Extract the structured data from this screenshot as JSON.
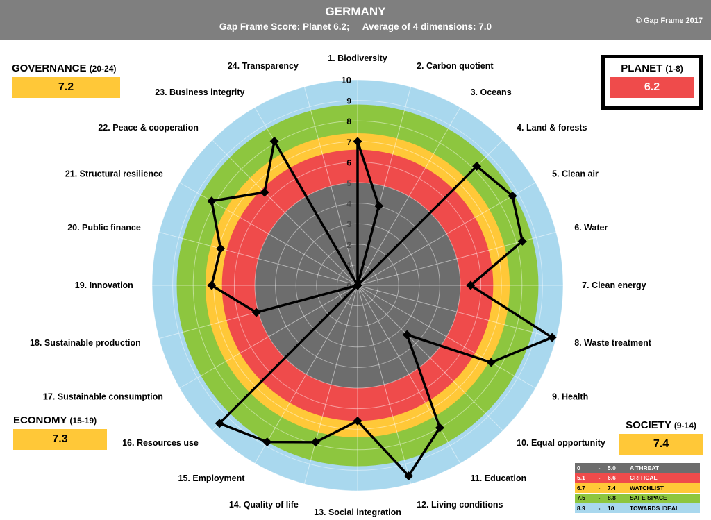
{
  "header": {
    "title": "GERMANY",
    "subtitle": "Gap Frame Score: Planet 6.2;     Average of 4 dimensions: 7.0",
    "copyright": "© Gap Frame 2017"
  },
  "dimensions": {
    "governance": {
      "name": "GOVERNANCE",
      "range": "(20-24)",
      "score": "7.2"
    },
    "planet": {
      "name": "PLANET",
      "range": "(1-8)",
      "score": "6.2"
    },
    "economy": {
      "name": "ECONOMY",
      "range": "(15-19)",
      "score": "7.3"
    },
    "society": {
      "name": "SOCIETY",
      "range": "(9-14)",
      "score": "7.4"
    }
  },
  "legend": [
    {
      "from": "0",
      "sep": "-",
      "to": "5.0",
      "label": "A THREAT",
      "color": "#6d6d6d",
      "text_color": "#ffffff"
    },
    {
      "from": "5.1",
      "sep": "-",
      "to": "6.6",
      "label": "CRITICAL",
      "color": "#ef4b4b",
      "text_color": "#ffffff"
    },
    {
      "from": "6.7",
      "sep": "-",
      "to": "7.4",
      "label": "WATCHLIST",
      "color": "#ffc838",
      "text_color": "#000000"
    },
    {
      "from": "7.5",
      "sep": "-",
      "to": "8.8",
      "label": "SAFE  SPACE",
      "color": "#8dc63f",
      "text_color": "#000000"
    },
    {
      "from": "8.9",
      "sep": "-",
      "to": "10",
      "label": "TOWARDS IDEAL",
      "color": "#a9d8ee",
      "text_color": "#000000"
    }
  ],
  "chart_data": {
    "type": "radar",
    "title": "GERMANY",
    "axis_range": [
      0,
      10
    ],
    "tick_labels": [
      "0",
      "1",
      "2",
      "3",
      "4",
      "5",
      "6",
      "7",
      "8",
      "9",
      "10"
    ],
    "bands": [
      {
        "min": 0,
        "max": 5.0,
        "color": "#6d6d6d"
      },
      {
        "min": 5.0,
        "max": 6.6,
        "color": "#ef4b4b"
      },
      {
        "min": 6.6,
        "max": 7.4,
        "color": "#ffc838"
      },
      {
        "min": 7.4,
        "max": 8.8,
        "color": "#8dc63f"
      },
      {
        "min": 8.8,
        "max": 10,
        "color": "#a9d8ee"
      }
    ],
    "categories": [
      "1. Biodiversity",
      "2. Carbon quotient",
      "3. Oceans",
      "4. Land & forests",
      "5. Clean air",
      "6. Water",
      "7. Clean energy",
      "8. Waste treatment",
      "9. Health",
      "10. Equal opportunity",
      "11. Education",
      "12. Living conditions",
      "13. Social integration",
      "14. Quality of life",
      "15. Employment",
      "16. Resources use",
      "17. Sustainable consumption",
      "18. Sustainable production",
      "19. Innovation",
      "20. Public finance",
      "21. Structural resilience",
      "22. Peace & cooperation",
      "23. Business integrity",
      "24. Transparency"
    ],
    "series": [
      {
        "name": "Germany",
        "color": "#000000",
        "values": [
          7.0,
          4.0,
          0,
          8.2,
          8.7,
          8.3,
          5.5,
          9.8,
          7.5,
          3.4,
          8.0,
          9.6,
          6.6,
          7.9,
          8.8,
          9.5,
          0,
          5.1,
          7.1,
          6.9,
          8.2,
          6.4,
          8.1,
          0
        ]
      }
    ]
  }
}
